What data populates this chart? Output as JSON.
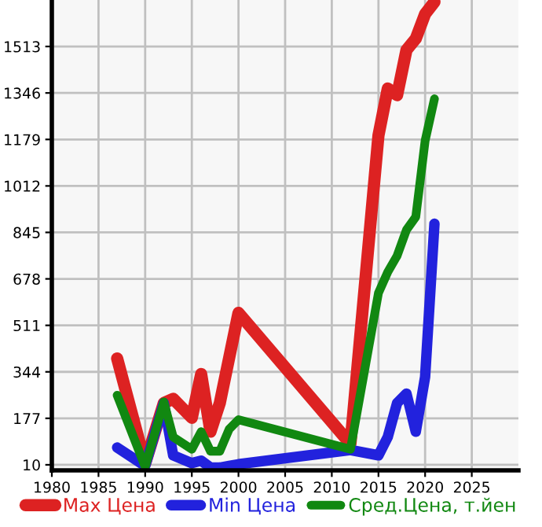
{
  "chart_data": {
    "type": "line",
    "x": [
      1987,
      1990,
      1992,
      1993,
      1995,
      1996,
      1997,
      1998,
      1999,
      2000,
      2012,
      2015,
      2016,
      2017,
      2018,
      2019,
      2020,
      2021
    ],
    "series": [
      {
        "name": "Max Цена",
        "color": "#dd2222",
        "values": [
          392,
          15,
          232,
          247,
          179,
          336,
          129,
          232,
          null,
          556,
          85,
          1193,
          1362,
          1338,
          1500,
          1541,
          1630,
          1673
        ]
      },
      {
        "name": "Min Цена",
        "color": "#2222dd",
        "values": [
          72,
          6,
          232,
          44,
          16,
          25,
          0,
          0,
          6,
          12,
          63,
          44,
          110,
          232,
          266,
          129,
          326,
          876
        ]
      },
      {
        "name": "Сред.Цена, т.йен",
        "color": "#118811",
        "values": [
          260,
          3,
          236,
          110,
          66,
          129,
          59,
          59,
          138,
          172,
          66,
          627,
          703,
          761,
          854,
          901,
          1174,
          1325
        ]
      }
    ],
    "xlim": [
      1980,
      2030
    ],
    "xticks": [
      1980,
      1985,
      1990,
      1995,
      2000,
      2005,
      2010,
      2015,
      2020,
      2025
    ],
    "ylim": [
      -10,
      1680
    ],
    "yticks": [
      10,
      177,
      344,
      511,
      678,
      845,
      1012,
      1179,
      1346,
      1513
    ],
    "grid": true,
    "legend": "bottom",
    "marker": "none",
    "line_style": "solid"
  }
}
